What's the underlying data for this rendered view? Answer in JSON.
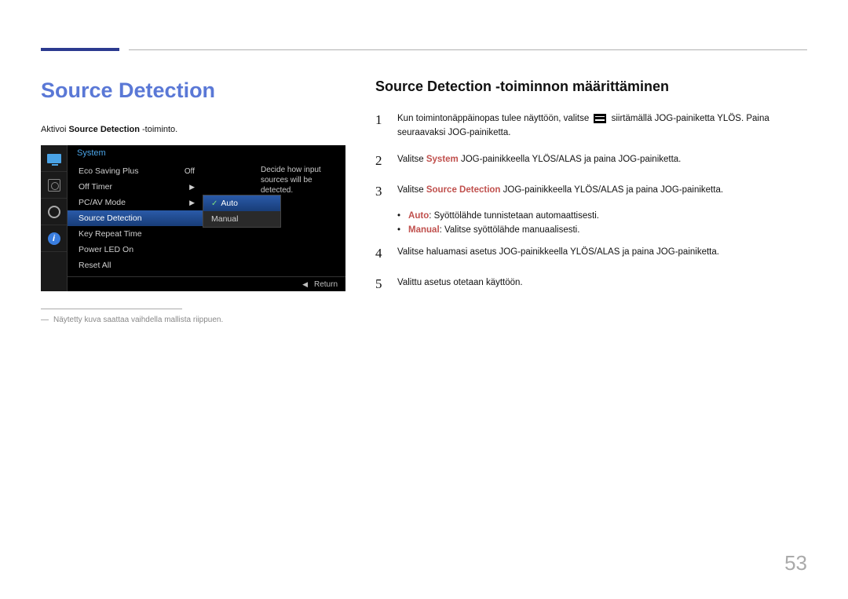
{
  "title": "Source Detection",
  "activate_prefix": "Aktivoi ",
  "activate_bold": "Source Detection",
  "activate_suffix": " -toiminto.",
  "osd": {
    "header": "System",
    "items": [
      {
        "label": "Eco Saving Plus",
        "right": "Off"
      },
      {
        "label": "Off Timer",
        "right": "▶"
      },
      {
        "label": "PC/AV Mode",
        "right": "▶"
      },
      {
        "label": "Source Detection",
        "right": ""
      },
      {
        "label": "Key Repeat Time",
        "right": ""
      },
      {
        "label": "Power LED On",
        "right": ""
      },
      {
        "label": "Reset All",
        "right": ""
      }
    ],
    "selected_index": 3,
    "submenu": [
      "Auto",
      "Manual"
    ],
    "submenu_selected": 0,
    "help": "Decide how input sources will be detected.",
    "return": "Return"
  },
  "footnote": "Näytetty kuva saattaa vaihdella mallista riippuen.",
  "right": {
    "heading": "Source Detection -toiminnon määrittäminen",
    "step1_a": "Kun toimintonäppäinopas tulee näyttöön, valitse ",
    "step1_b": " siirtämällä JOG-painiketta YLÖS. Paina seuraavaksi JOG-painiketta.",
    "step2_a": "Valitse ",
    "step2_kw": "System",
    "step2_b": " JOG-painikkeella YLÖS/ALAS ja paina JOG-painiketta.",
    "step3_a": "Valitse ",
    "step3_kw": "Source Detection",
    "step3_b": " JOG-painikkeella YLÖS/ALAS ja paina JOG-painiketta.",
    "bullet1_kw": "Auto",
    "bullet1_txt": ": Syöttölähde tunnistetaan automaattisesti.",
    "bullet2_kw": "Manual",
    "bullet2_txt": ": Valitse syöttölähde manuaalisesti.",
    "step4": "Valitse haluamasi asetus JOG-painikkeella YLÖS/ALAS ja paina JOG-painiketta.",
    "step5": "Valittu asetus otetaan käyttöön."
  },
  "page_number": "53",
  "num": {
    "n1": "1",
    "n2": "2",
    "n3": "3",
    "n4": "4",
    "n5": "5"
  }
}
